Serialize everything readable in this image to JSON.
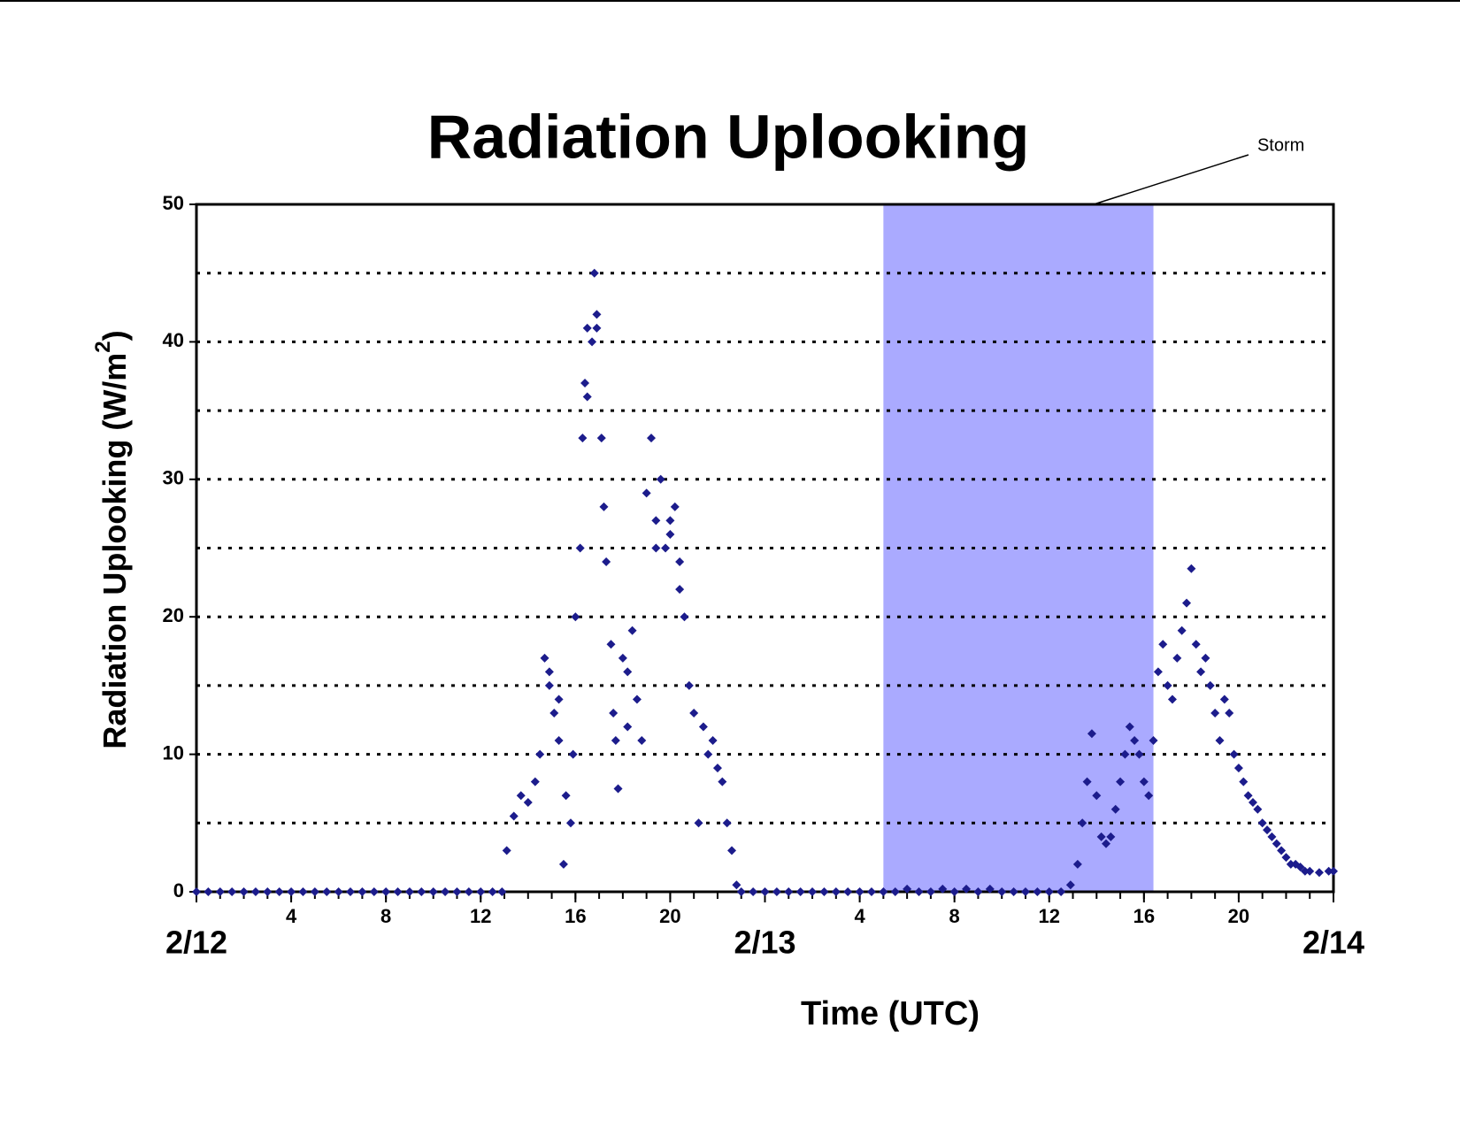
{
  "chart_data": {
    "type": "scatter",
    "title": "Radiation Uplooking",
    "xlabel": "Time (UTC)",
    "ylabel": "Radiation Uplooking (W/m",
    "ylabel_sup": "2",
    "ylabel_end": ")",
    "xlim": [
      0,
      48
    ],
    "ylim": [
      0,
      50
    ],
    "xticks": [
      {
        "value": 0,
        "label": "2/12"
      },
      4,
      8,
      12,
      16,
      20,
      {
        "value": 24,
        "label": "2/13"
      },
      {
        "value": 28,
        "label": "4"
      },
      {
        "value": 32,
        "label": "8"
      },
      {
        "value": 36,
        "label": "12"
      },
      {
        "value": 40,
        "label": "16"
      },
      {
        "value": 44,
        "label": "20"
      },
      {
        "value": 48,
        "label": "2/14"
      }
    ],
    "xminor_step": 1,
    "yticks": [
      0,
      10,
      20,
      30,
      40,
      50
    ],
    "ygridlines": [
      5,
      10,
      15,
      20,
      25,
      30,
      35,
      40,
      45
    ],
    "grid": true,
    "annotations": [
      {
        "text": "Storm",
        "x0": 29,
        "x1": 40.4,
        "color": "#aaaaff"
      }
    ],
    "series": [
      {
        "name": "Radiation Uplooking",
        "color": "#1c1c8c",
        "x": [
          0,
          0.5,
          1,
          1.5,
          2,
          2.5,
          3,
          3.5,
          4,
          4.5,
          5,
          5.5,
          6,
          6.5,
          7,
          7.5,
          8,
          8.5,
          9,
          9.5,
          10,
          10.5,
          11,
          11.5,
          12,
          12.5,
          12.9,
          13.1,
          13.4,
          13.7,
          14.0,
          14.3,
          14.5,
          14.7,
          14.9,
          14.9,
          15.1,
          15.3,
          15.3,
          15.5,
          15.6,
          15.8,
          15.9,
          16.0,
          16.2,
          16.3,
          16.4,
          16.5,
          16.5,
          16.7,
          16.8,
          16.9,
          16.9,
          17.1,
          17.2,
          17.3,
          17.5,
          17.6,
          17.7,
          17.8,
          18.0,
          18.2,
          18.2,
          18.4,
          18.6,
          18.8,
          19.0,
          19.2,
          19.4,
          19.4,
          19.6,
          19.8,
          20.0,
          20.0,
          20.2,
          20.4,
          20.4,
          20.6,
          20.8,
          21.0,
          21.2,
          21.4,
          21.6,
          21.8,
          22.0,
          22.2,
          22.4,
          22.6,
          22.8,
          23.0,
          23.5,
          24,
          24.5,
          25,
          25.5,
          26,
          26.5,
          27,
          27.5,
          28,
          28.5,
          29,
          29.5,
          30,
          30.5,
          31,
          31.5,
          32,
          32.5,
          33,
          33.5,
          34,
          34.5,
          35,
          35.5,
          36,
          36.5,
          36.9,
          37.2,
          37.4,
          37.6,
          37.8,
          38.0,
          38.2,
          38.4,
          38.6,
          38.8,
          39.0,
          39.2,
          39.4,
          39.6,
          39.8,
          40.0,
          40.2,
          40.4,
          40.6,
          40.8,
          41.0,
          41.2,
          41.4,
          41.6,
          41.8,
          42.0,
          42.2,
          42.4,
          42.6,
          42.8,
          43.0,
          43.2,
          43.4,
          43.6,
          43.8,
          44.0,
          44.2,
          44.4,
          44.6,
          44.8,
          45.0,
          45.2,
          45.4,
          45.6,
          45.8,
          46.0,
          46.2,
          46.4,
          46.6,
          46.8,
          47.0,
          47.4,
          47.8,
          48.0
        ],
        "values": [
          0,
          0,
          0,
          0,
          0,
          0,
          0,
          0,
          0,
          0,
          0,
          0,
          0,
          0,
          0,
          0,
          0,
          0,
          0,
          0,
          0,
          0,
          0,
          0,
          0,
          0,
          0,
          3,
          5.5,
          7,
          6.5,
          8,
          10,
          17,
          15,
          16,
          13,
          11,
          14,
          2,
          7,
          5,
          10,
          20,
          25,
          33,
          37,
          41,
          36,
          40,
          45,
          42,
          41,
          33,
          28,
          24,
          18,
          13,
          11,
          7.5,
          17,
          16,
          12,
          19,
          14,
          11,
          29,
          33,
          27,
          25,
          30,
          25,
          27,
          26,
          28,
          24,
          22,
          20,
          15,
          13,
          5,
          12,
          10,
          11,
          9,
          8,
          5,
          3,
          0.5,
          0,
          0,
          0,
          0,
          0,
          0,
          0,
          0,
          0,
          0,
          0,
          0,
          0,
          0,
          0.2,
          0,
          0,
          0.2,
          0,
          0.2,
          0,
          0.2,
          0,
          0,
          0,
          0,
          0,
          0,
          0.5,
          2,
          5,
          8,
          11.5,
          7,
          4,
          3.5,
          4,
          6,
          8,
          10,
          12,
          11,
          10,
          8,
          7,
          11,
          16,
          18,
          15,
          14,
          17,
          19,
          21,
          23.5,
          18,
          16,
          17,
          15,
          13,
          11,
          14,
          13,
          10,
          9,
          8,
          7,
          6.5,
          6,
          5,
          4.5,
          4,
          3.5,
          3,
          2.5,
          2,
          2,
          1.8,
          1.5,
          1.5,
          1.4,
          1.5,
          1.5
        ]
      }
    ]
  }
}
